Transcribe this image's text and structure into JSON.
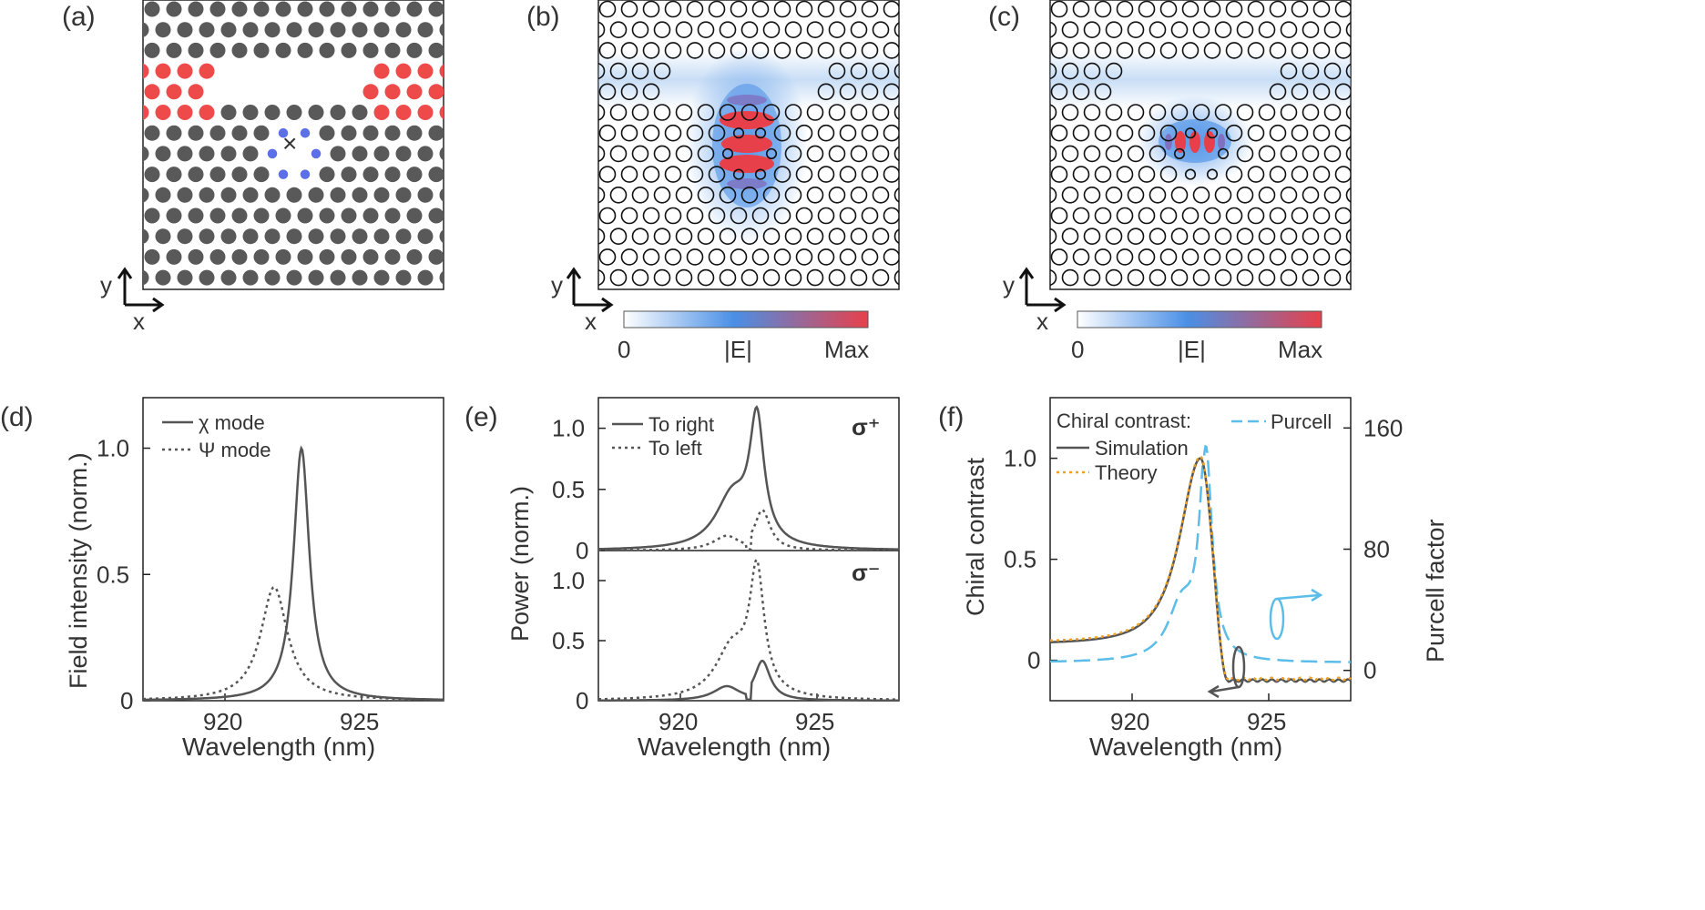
{
  "labels": {
    "a": "(a)",
    "b": "(b)",
    "c": "(c)",
    "d": "(d)",
    "e": "(e)",
    "f": "(f)"
  },
  "axes_arrows": {
    "y": "y",
    "x": "x"
  },
  "colorbar": {
    "min": "0",
    "mid": "|E|",
    "max": "Max"
  },
  "colors": {
    "holes": "#595959",
    "waveguide": "#ef4a4a",
    "shifted": "#5b6fe8",
    "purcell": "#5bbde8",
    "theory": "#f0a020",
    "line": "#555555"
  },
  "chart_data": [
    {
      "id": "d",
      "type": "line",
      "xlabel": "Wavelength (nm)",
      "ylabel": "Field intensity (norm.)",
      "xlim": [
        917,
        928
      ],
      "ylim": [
        0,
        1.2
      ],
      "xticks": [
        920,
        925
      ],
      "yticks": [
        0,
        0.5,
        1.0
      ],
      "ytick_labels": [
        "0",
        "0.5",
        "1.0"
      ],
      "series": [
        {
          "name": "χ mode",
          "style": "solid",
          "peak_x": 922.8,
          "peak_y": 1.0,
          "width": 0.35
        },
        {
          "name": "Ψ mode",
          "style": "dotted",
          "peak_x": 921.8,
          "peak_y": 0.45,
          "width": 0.6
        }
      ]
    },
    {
      "id": "e_top",
      "type": "line",
      "annotation": "σ⁺",
      "xlim": [
        917,
        928
      ],
      "ylim": [
        0,
        1.25
      ],
      "yticks": [
        0,
        0.5,
        1.0
      ],
      "ytick_labels": [
        "0",
        "0.5",
        "1.0"
      ],
      "series": [
        {
          "name": "To right",
          "style": "solid"
        },
        {
          "name": "To left",
          "style": "dotted"
        }
      ]
    },
    {
      "id": "e_bottom",
      "type": "line",
      "annotation": "σ⁻",
      "xlabel": "Wavelength (nm)",
      "ylabel": "Power (norm.)",
      "xlim": [
        917,
        928
      ],
      "ylim": [
        0,
        1.25
      ],
      "xticks": [
        920,
        925
      ],
      "yticks": [
        0,
        0.5,
        1.0
      ],
      "ytick_labels": [
        "0",
        "0.5",
        "1.0"
      ],
      "series": [
        {
          "name": "To right",
          "style": "solid"
        },
        {
          "name": "To left",
          "style": "dotted"
        }
      ]
    },
    {
      "id": "f",
      "type": "line",
      "legend_title": "Chiral contrast:",
      "xlabel": "Wavelength (nm)",
      "ylabel": "Chiral contrast",
      "y2label": "Purcell factor",
      "xlim": [
        917,
        928
      ],
      "ylim": [
        -0.2,
        1.3
      ],
      "y2lim": [
        -20,
        180
      ],
      "xticks": [
        920,
        925
      ],
      "yticks": [
        0,
        0.5,
        1.0
      ],
      "ytick_labels": [
        "0",
        "0.5",
        "1.0"
      ],
      "y2ticks": [
        0,
        80,
        160
      ],
      "series": [
        {
          "name": "Simulation",
          "style": "solid"
        },
        {
          "name": "Theory",
          "style": "dotted"
        },
        {
          "name": "Purcell",
          "style": "dashed",
          "peak_x": 922.7,
          "peak_y": 145
        }
      ]
    }
  ]
}
